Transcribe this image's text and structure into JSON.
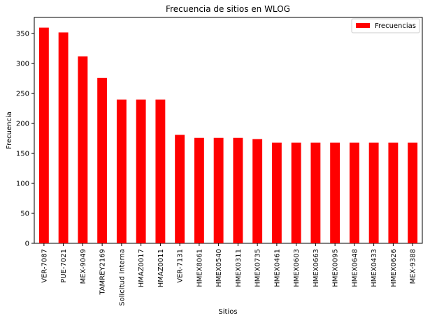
{
  "chart_data": {
    "type": "bar",
    "title": "Frecuencia de sitios en WLOG",
    "xlabel": "Sitios",
    "ylabel": "Frecuencia",
    "ylim": [
      0,
      377
    ],
    "yticks": [
      0,
      50,
      100,
      150,
      200,
      250,
      300,
      350
    ],
    "categories": [
      "VER-7087",
      "PUE-7021",
      "MEX-9049",
      "TAMREY2169",
      "Solicitud Interna",
      "HMAZ0017",
      "HMAZ0011",
      "VER-7131",
      "HMEX8061",
      "HMEX0540",
      "HMEX0311",
      "HMEX0735",
      "HMEX0461",
      "HMEX0603",
      "HMEX0663",
      "HMEX0095",
      "HMEX0648",
      "HMEX0433",
      "HMEX0626",
      "MEX-9388"
    ],
    "series": [
      {
        "name": "Frecuencias",
        "color": "#ff0000",
        "values": [
          360,
          352,
          312,
          276,
          240,
          240,
          240,
          181,
          176,
          176,
          176,
          174,
          168,
          168,
          168,
          168,
          168,
          168,
          168,
          168
        ]
      }
    ],
    "grid": false,
    "legend_position": "top-right"
  }
}
